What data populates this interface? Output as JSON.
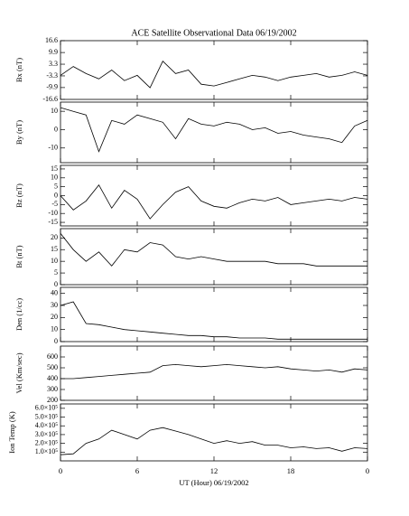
{
  "title": "ACE Satellite Observational Data   06/19/2002",
  "x_axis": {
    "label": "UT (Hour)   06/19/2002",
    "xlim": [
      0,
      24
    ],
    "xticks": [
      0,
      6,
      12,
      18,
      {
        "value": 24,
        "label": "0"
      }
    ],
    "x": [
      0,
      1,
      2,
      3,
      4,
      5,
      6,
      7,
      8,
      9,
      10,
      11,
      12,
      13,
      14,
      15,
      16,
      17,
      18,
      19,
      20,
      21,
      22,
      23,
      24
    ]
  },
  "chart_data": [
    {
      "type": "line",
      "ylabel": "Bx (nT)",
      "color": "#000000",
      "ylim": [
        -16.6,
        16.6
      ],
      "yticks": [
        16.6,
        9.9,
        3.3,
        -3.3,
        -9.9,
        -16.6
      ],
      "values": [
        -3,
        2,
        -2,
        -5,
        0,
        -6,
        -3,
        -10,
        5,
        -2,
        0,
        -8,
        -9,
        -7,
        -5,
        -3,
        -4,
        -6,
        -4,
        -3,
        -2,
        -4,
        -3,
        -1,
        -3
      ]
    },
    {
      "type": "line",
      "ylabel": "By (nT)",
      "color": "#000000",
      "ylim": [
        -18,
        15
      ],
      "yticks": [
        10,
        0,
        -10
      ],
      "values": [
        12,
        10,
        8,
        -12,
        5,
        3,
        8,
        6,
        4,
        -5,
        6,
        3,
        2,
        4,
        3,
        0,
        1,
        -2,
        -1,
        -3,
        -4,
        -5,
        -7,
        2,
        5
      ]
    },
    {
      "type": "line",
      "ylabel": "Bz (nT)",
      "color": "#000000",
      "ylim": [
        -17,
        17
      ],
      "yticks": [
        15,
        10,
        5,
        0,
        -5,
        -10,
        -15
      ],
      "values": [
        0,
        -8,
        -3,
        6,
        -7,
        3,
        -2,
        -13,
        -5,
        2,
        5,
        -3,
        -6,
        -7,
        -4,
        -2,
        -3,
        -1,
        -5,
        -4,
        -3,
        -2,
        -3,
        -1,
        -2
      ]
    },
    {
      "type": "line",
      "ylabel": "Bt (nT)",
      "color": "#000000",
      "ylim": [
        0,
        24
      ],
      "yticks": [
        0,
        5,
        10,
        15,
        20
      ],
      "values": [
        22,
        15,
        10,
        14,
        8,
        15,
        14,
        18,
        17,
        12,
        11,
        12,
        11,
        10,
        10,
        10,
        10,
        9,
        9,
        9,
        8,
        8,
        8,
        8,
        8
      ]
    },
    {
      "type": "line",
      "ylabel": "Den (1/cc)",
      "color": "#000000",
      "ylim": [
        0,
        45
      ],
      "yticks": [
        0,
        10,
        20,
        30,
        40
      ],
      "values": [
        30,
        33,
        15,
        14,
        12,
        10,
        9,
        8,
        7,
        6,
        5,
        5,
        4,
        4,
        3,
        3,
        3,
        2,
        2,
        2,
        2,
        2,
        2,
        2,
        2
      ]
    },
    {
      "type": "line",
      "ylabel": "Vel (Km/sec)",
      "color": "#000000",
      "ylim": [
        200,
        700
      ],
      "yticks": [
        200,
        300,
        400,
        500,
        600
      ],
      "values": [
        400,
        400,
        410,
        420,
        430,
        440,
        450,
        460,
        520,
        530,
        520,
        510,
        520,
        530,
        520,
        510,
        500,
        510,
        490,
        480,
        470,
        480,
        460,
        490,
        480
      ]
    },
    {
      "type": "line",
      "ylabel": "Ion Temp (K)",
      "color": "#000000",
      "ylim": [
        0,
        650000
      ],
      "yticks": [
        {
          "value": 100000,
          "label": "1.0×10⁵"
        },
        {
          "value": 200000,
          "label": "2.0×10⁵"
        },
        {
          "value": 300000,
          "label": "3.0×10⁵"
        },
        {
          "value": 400000,
          "label": "4.0×10⁵"
        },
        {
          "value": 500000,
          "label": "5.0×10⁵"
        },
        {
          "value": 600000,
          "label": "6.0×10⁵"
        }
      ],
      "values": [
        70000,
        80000,
        200000,
        250000,
        350000,
        300000,
        250000,
        350000,
        380000,
        340000,
        300000,
        250000,
        200000,
        230000,
        200000,
        220000,
        180000,
        180000,
        150000,
        160000,
        140000,
        150000,
        110000,
        150000,
        140000
      ]
    }
  ]
}
